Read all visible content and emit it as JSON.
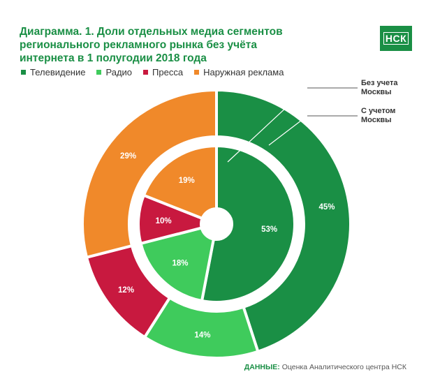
{
  "title_lines": [
    "Диаграмма. 1. Доли отдельных медиа сегментов",
    "регионального рекламного рынка без учёта",
    "интернета  в 1 полугодии 2018 года"
  ],
  "logo": "НСК",
  "footer": {
    "label": "ДАННЫЕ:",
    "source": "Оценка Аналитического центра НСК"
  },
  "chart_data": {
    "type": "pie",
    "title": "Диаграмма. 1. Доли отдельных медиа сегментов регионального рекламного рынка без учёта интернета  в 1 полугодии 2018 года",
    "categories": [
      "Телевидение",
      "Радио",
      "Пресса",
      "Наружная реклама"
    ],
    "colors": [
      "#1a8f45",
      "#3fcb5c",
      "#c8193f",
      "#f0892a"
    ],
    "series": [
      {
        "name": "Без учета Москвы",
        "values": [
          53,
          18,
          10,
          19
        ],
        "labels": [
          "53%",
          "18%",
          "10%",
          "19%"
        ]
      },
      {
        "name": "С учетом Москвы",
        "values": [
          45,
          14,
          12,
          29
        ],
        "labels": [
          "45%",
          "14%",
          "12%",
          "29%"
        ]
      }
    ],
    "legend_position": "top-left"
  }
}
